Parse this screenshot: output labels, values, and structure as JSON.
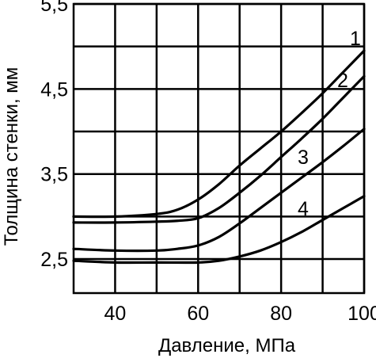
{
  "chart_data": {
    "type": "line",
    "title": "",
    "xlabel": "Давление, МПа",
    "ylabel": "Толщина стенки, мм",
    "xlim": [
      30,
      100
    ],
    "ylim": [
      2.1,
      5.5
    ],
    "x_ticks": [
      40,
      60,
      80,
      100
    ],
    "x_tick_labels": [
      "40",
      "60",
      "80",
      "100"
    ],
    "y_ticks": [
      2.5,
      3.5,
      4.5,
      5.5
    ],
    "y_tick_labels": [
      "2,5",
      "3,5",
      "4,5",
      "5,5"
    ],
    "x_grid": [
      40,
      50,
      60,
      70,
      80,
      90,
      100
    ],
    "y_grid": [
      2.5,
      3.0,
      3.5,
      4.0,
      4.5,
      5.0,
      5.5
    ],
    "grid": true,
    "colors": {
      "line": "#000000",
      "grid": "#000000",
      "background": "#ffffff"
    },
    "series": [
      {
        "name": "1",
        "x": [
          30,
          40,
          50,
          55,
          60,
          65,
          70,
          75,
          80,
          85,
          90,
          95,
          100
        ],
        "y": [
          3.0,
          3.0,
          3.03,
          3.08,
          3.2,
          3.38,
          3.6,
          3.8,
          4.0,
          4.22,
          4.45,
          4.7,
          4.95
        ]
      },
      {
        "name": "2",
        "x": [
          30,
          40,
          50,
          55,
          60,
          65,
          70,
          75,
          80,
          85,
          90,
          95,
          100
        ],
        "y": [
          2.93,
          2.93,
          2.94,
          2.95,
          2.98,
          3.1,
          3.28,
          3.48,
          3.7,
          3.92,
          4.15,
          4.4,
          4.65
        ]
      },
      {
        "name": "3",
        "x": [
          30,
          40,
          50,
          55,
          60,
          65,
          70,
          75,
          80,
          85,
          90,
          95,
          100
        ],
        "y": [
          2.62,
          2.6,
          2.6,
          2.62,
          2.66,
          2.76,
          2.92,
          3.1,
          3.28,
          3.46,
          3.64,
          3.83,
          4.03
        ]
      },
      {
        "name": "4",
        "x": [
          30,
          40,
          50,
          60,
          65,
          70,
          75,
          80,
          85,
          90,
          95,
          100
        ],
        "y": [
          2.48,
          2.46,
          2.46,
          2.46,
          2.48,
          2.53,
          2.6,
          2.7,
          2.82,
          2.96,
          3.1,
          3.24
        ]
      }
    ],
    "annotations": [
      "1",
      "2",
      "3",
      "4"
    ]
  }
}
